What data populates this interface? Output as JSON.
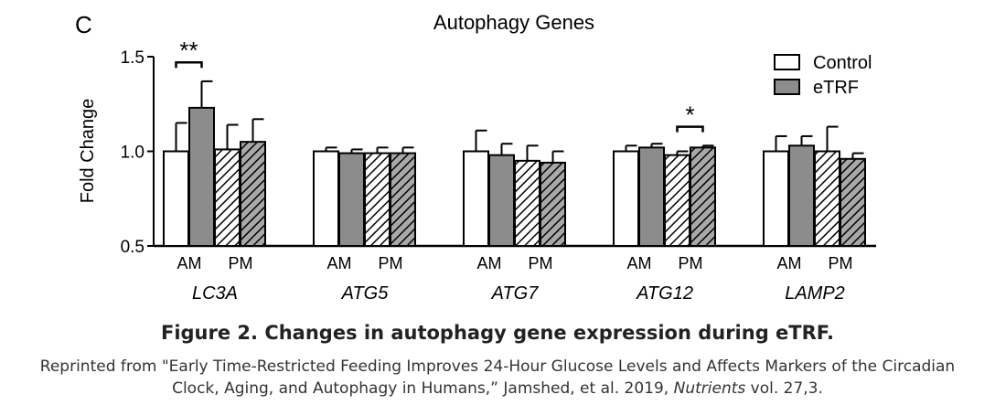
{
  "panel_label": "C",
  "chart_data": {
    "type": "bar",
    "title": "Autophagy Genes",
    "ylabel": "Fold Change",
    "ylim": [
      0.5,
      1.5
    ],
    "yticks": [
      "0.5",
      "1.0",
      "1.5"
    ],
    "groups": [
      "LC3A",
      "ATG5",
      "ATG7",
      "ATG12",
      "LAMP2"
    ],
    "subgroups": [
      "AM",
      "PM"
    ],
    "legend": {
      "position": "top-right",
      "items": [
        "Control",
        "eTRF"
      ]
    },
    "series": [
      {
        "name": "Control AM",
        "group_index": 0,
        "time": "AM",
        "condition": "Control",
        "values": [
          1.0,
          1.0,
          1.0,
          1.0,
          1.0
        ],
        "errors": [
          0.15,
          0.02,
          0.11,
          0.03,
          0.08
        ]
      },
      {
        "name": "eTRF AM",
        "group_index": 1,
        "time": "AM",
        "condition": "eTRF",
        "values": [
          1.23,
          0.99,
          0.98,
          1.02,
          1.03
        ],
        "errors": [
          0.14,
          0.02,
          0.06,
          0.02,
          0.05
        ]
      },
      {
        "name": "Control PM",
        "group_index": 2,
        "time": "PM",
        "condition": "Control",
        "values": [
          1.01,
          0.99,
          0.95,
          0.98,
          1.0
        ],
        "errors": [
          0.13,
          0.03,
          0.08,
          0.02,
          0.13
        ]
      },
      {
        "name": "eTRF PM",
        "group_index": 3,
        "time": "PM",
        "condition": "eTRF",
        "values": [
          1.05,
          0.99,
          0.94,
          1.02,
          0.96
        ],
        "errors": [
          0.12,
          0.03,
          0.06,
          0.01,
          0.03
        ]
      }
    ],
    "annotations": [
      {
        "text": "**",
        "group": "LC3A",
        "between": [
          "Control AM",
          "eTRF AM"
        ],
        "y": 1.47
      },
      {
        "text": "*",
        "group": "ATG12",
        "between": [
          "Control PM",
          "eTRF PM"
        ],
        "y": 1.13
      }
    ]
  },
  "figure_title": "Figure 2. Changes in autophagy gene expression during eTRF.",
  "caption": {
    "line1": "Reprinted from \"Early Time-Restricted Feeding Improves 24-Hour Glucose Levels and Affects Markers of the Circadian",
    "line2_pre": "Clock, Aging, and Autophagy in Humans,” Jamshed, et al. 2019, ",
    "line2_journal": "Nutrients",
    "line2_post": " vol. 27,3."
  },
  "colors": {
    "control_fill": "#ffffff",
    "etrf_fill": "#8c8c8c",
    "etrf_hatch_bg": "#a8a8a8",
    "axis": "#000000"
  }
}
